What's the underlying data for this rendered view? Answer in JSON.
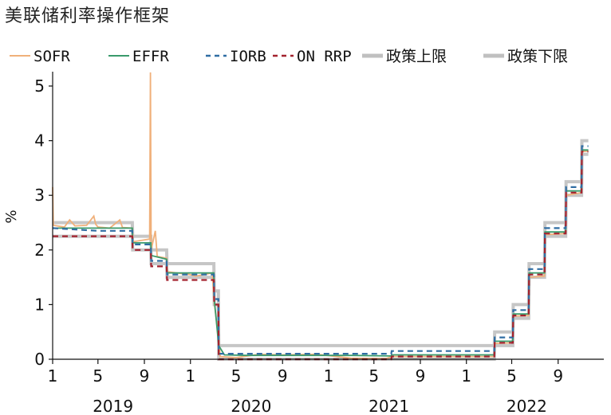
{
  "chart_data": {
    "type": "line",
    "title": "美联储利率操作框架",
    "xlabel": "",
    "ylabel": "%",
    "ylim": [
      0,
      5.25
    ],
    "y_ticks": [
      "0",
      "1",
      "2",
      "3",
      "4",
      "5"
    ],
    "x_month_ticks": [
      {
        "label": "1",
        "date": "2019-01-01"
      },
      {
        "label": "5",
        "date": "2019-05-01"
      },
      {
        "label": "9",
        "date": "2019-09-01"
      },
      {
        "label": "1",
        "date": "2020-01-01"
      },
      {
        "label": "5",
        "date": "2020-05-01"
      },
      {
        "label": "9",
        "date": "2020-09-01"
      },
      {
        "label": "1",
        "date": "2021-01-01"
      },
      {
        "label": "5",
        "date": "2021-05-01"
      },
      {
        "label": "9",
        "date": "2021-09-01"
      },
      {
        "label": "1",
        "date": "2022-01-01"
      },
      {
        "label": "5",
        "date": "2022-05-01"
      },
      {
        "label": "9",
        "date": "2022-09-01"
      }
    ],
    "x_year_labels": [
      {
        "label": "2019",
        "date": "2019-07-01"
      },
      {
        "label": "2020",
        "date": "2020-07-01"
      },
      {
        "label": "2021",
        "date": "2021-07-01"
      },
      {
        "label": "2022",
        "date": "2022-07-01"
      }
    ],
    "x_range": [
      "2019-01-01",
      "2022-12-31"
    ],
    "grid": false,
    "legend_position": "top",
    "series": [
      {
        "name": "SOFR",
        "color": "#f0b07a",
        "style": "solid",
        "points": [
          [
            "2019-01-01",
            3.15
          ],
          [
            "2019-01-03",
            2.45
          ],
          [
            "2019-02-01",
            2.42
          ],
          [
            "2019-02-15",
            2.55
          ],
          [
            "2019-03-01",
            2.44
          ],
          [
            "2019-04-01",
            2.45
          ],
          [
            "2019-04-20",
            2.62
          ],
          [
            "2019-04-25",
            2.47
          ],
          [
            "2019-05-01",
            2.42
          ],
          [
            "2019-06-01",
            2.4
          ],
          [
            "2019-06-28",
            2.55
          ],
          [
            "2019-07-05",
            2.41
          ],
          [
            "2019-07-31",
            2.4
          ],
          [
            "2019-08-02",
            2.15
          ],
          [
            "2019-09-15",
            2.2
          ],
          [
            "2019-09-17",
            5.25
          ],
          [
            "2019-09-19",
            2.0
          ],
          [
            "2019-09-30",
            2.35
          ],
          [
            "2019-10-05",
            1.88
          ],
          [
            "2019-10-30",
            1.85
          ],
          [
            "2019-11-01",
            1.6
          ],
          [
            "2019-12-31",
            1.55
          ],
          [
            "2020-01-15",
            1.52
          ],
          [
            "2020-02-28",
            1.58
          ],
          [
            "2020-03-03",
            1.1
          ],
          [
            "2020-03-15",
            0.4
          ],
          [
            "2020-03-20",
            0.05
          ],
          [
            "2020-05-01",
            0.03
          ],
          [
            "2020-07-01",
            0.09
          ],
          [
            "2020-09-01",
            0.08
          ],
          [
            "2020-12-01",
            0.09
          ],
          [
            "2021-03-01",
            0.02
          ],
          [
            "2021-06-01",
            0.01
          ],
          [
            "2021-06-17",
            0.05
          ],
          [
            "2021-12-31",
            0.05
          ],
          [
            "2022-03-16",
            0.05
          ],
          [
            "2022-03-17",
            0.29
          ],
          [
            "2022-05-04",
            0.3
          ],
          [
            "2022-05-05",
            0.79
          ],
          [
            "2022-06-15",
            0.8
          ],
          [
            "2022-06-16",
            1.5
          ],
          [
            "2022-07-27",
            1.52
          ],
          [
            "2022-07-28",
            2.28
          ],
          [
            "2022-09-21",
            2.3
          ],
          [
            "2022-09-22",
            3.0
          ],
          [
            "2022-11-02",
            3.05
          ],
          [
            "2022-11-03",
            3.8
          ],
          [
            "2022-11-20",
            3.81
          ]
        ]
      },
      {
        "name": "EFFR",
        "color": "#3a9a6b",
        "style": "solid",
        "points": [
          [
            "2019-01-01",
            2.4
          ],
          [
            "2019-07-31",
            2.4
          ],
          [
            "2019-08-01",
            2.13
          ],
          [
            "2019-09-18",
            2.13
          ],
          [
            "2019-09-19",
            1.9
          ],
          [
            "2019-10-30",
            1.83
          ],
          [
            "2019-10-31",
            1.58
          ],
          [
            "2020-03-03",
            1.58
          ],
          [
            "2020-03-04",
            1.1
          ],
          [
            "2020-03-16",
            0.25
          ],
          [
            "2020-03-31",
            0.08
          ],
          [
            "2020-06-01",
            0.07
          ],
          [
            "2021-03-01",
            0.07
          ],
          [
            "2021-06-16",
            0.06
          ],
          [
            "2021-06-17",
            0.08
          ],
          [
            "2022-03-16",
            0.08
          ],
          [
            "2022-03-17",
            0.33
          ],
          [
            "2022-05-04",
            0.33
          ],
          [
            "2022-05-05",
            0.83
          ],
          [
            "2022-06-15",
            0.83
          ],
          [
            "2022-06-16",
            1.58
          ],
          [
            "2022-07-27",
            1.58
          ],
          [
            "2022-07-28",
            2.33
          ],
          [
            "2022-09-21",
            2.33
          ],
          [
            "2022-09-22",
            3.08
          ],
          [
            "2022-11-02",
            3.08
          ],
          [
            "2022-11-03",
            3.83
          ],
          [
            "2022-11-20",
            3.83
          ]
        ]
      },
      {
        "name": "IORB",
        "color": "#2f6da3",
        "style": "dashed",
        "points": [
          [
            "2019-01-01",
            2.4
          ],
          [
            "2019-05-01",
            2.35
          ],
          [
            "2019-07-31",
            2.35
          ],
          [
            "2019-08-01",
            2.1
          ],
          [
            "2019-09-18",
            2.1
          ],
          [
            "2019-09-19",
            1.8
          ],
          [
            "2019-10-30",
            1.8
          ],
          [
            "2019-10-31",
            1.55
          ],
          [
            "2020-03-03",
            1.55
          ],
          [
            "2020-03-04",
            1.1
          ],
          [
            "2020-03-15",
            1.1
          ],
          [
            "2020-03-16",
            0.1
          ],
          [
            "2021-06-16",
            0.1
          ],
          [
            "2021-06-17",
            0.15
          ],
          [
            "2022-03-16",
            0.15
          ],
          [
            "2022-03-17",
            0.4
          ],
          [
            "2022-05-04",
            0.4
          ],
          [
            "2022-05-05",
            0.9
          ],
          [
            "2022-06-15",
            0.9
          ],
          [
            "2022-06-16",
            1.65
          ],
          [
            "2022-07-27",
            1.65
          ],
          [
            "2022-07-28",
            2.4
          ],
          [
            "2022-09-21",
            2.4
          ],
          [
            "2022-09-22",
            3.15
          ],
          [
            "2022-11-02",
            3.15
          ],
          [
            "2022-11-03",
            3.9
          ],
          [
            "2022-11-20",
            3.9
          ]
        ]
      },
      {
        "name": "ON RRP",
        "color": "#a3222e",
        "style": "dashed",
        "points": [
          [
            "2019-01-01",
            2.25
          ],
          [
            "2019-07-31",
            2.25
          ],
          [
            "2019-08-01",
            2.0
          ],
          [
            "2019-09-18",
            2.0
          ],
          [
            "2019-09-19",
            1.7
          ],
          [
            "2019-10-30",
            1.7
          ],
          [
            "2019-10-31",
            1.45
          ],
          [
            "2020-03-03",
            1.45
          ],
          [
            "2020-03-04",
            1.0
          ],
          [
            "2020-03-15",
            1.0
          ],
          [
            "2020-03-16",
            0.0
          ],
          [
            "2021-06-16",
            0.0
          ],
          [
            "2021-06-17",
            0.05
          ],
          [
            "2022-03-16",
            0.05
          ],
          [
            "2022-03-17",
            0.3
          ],
          [
            "2022-05-04",
            0.3
          ],
          [
            "2022-05-05",
            0.8
          ],
          [
            "2022-06-15",
            0.8
          ],
          [
            "2022-06-16",
            1.55
          ],
          [
            "2022-07-27",
            1.55
          ],
          [
            "2022-07-28",
            2.3
          ],
          [
            "2022-09-21",
            2.3
          ],
          [
            "2022-09-22",
            3.05
          ],
          [
            "2022-11-02",
            3.05
          ],
          [
            "2022-11-03",
            3.8
          ],
          [
            "2022-11-20",
            3.8
          ]
        ]
      },
      {
        "name": "政策上限",
        "color": "#c0c0c0",
        "style": "thick",
        "points": [
          [
            "2019-01-01",
            2.5
          ],
          [
            "2019-07-31",
            2.5
          ],
          [
            "2019-08-01",
            2.25
          ],
          [
            "2019-09-18",
            2.25
          ],
          [
            "2019-09-19",
            2.0
          ],
          [
            "2019-10-30",
            2.0
          ],
          [
            "2019-10-31",
            1.75
          ],
          [
            "2020-03-03",
            1.75
          ],
          [
            "2020-03-04",
            1.25
          ],
          [
            "2020-03-15",
            1.25
          ],
          [
            "2020-03-16",
            0.25
          ],
          [
            "2022-03-16",
            0.25
          ],
          [
            "2022-03-17",
            0.5
          ],
          [
            "2022-05-04",
            0.5
          ],
          [
            "2022-05-05",
            1.0
          ],
          [
            "2022-06-15",
            1.0
          ],
          [
            "2022-06-16",
            1.75
          ],
          [
            "2022-07-27",
            1.75
          ],
          [
            "2022-07-28",
            2.5
          ],
          [
            "2022-09-21",
            2.5
          ],
          [
            "2022-09-22",
            3.25
          ],
          [
            "2022-11-02",
            3.25
          ],
          [
            "2022-11-03",
            4.0
          ],
          [
            "2022-11-20",
            4.0
          ]
        ]
      },
      {
        "name": "政策下限",
        "color": "#c0c0c0",
        "style": "thick",
        "points": [
          [
            "2019-01-01",
            2.25
          ],
          [
            "2019-07-31",
            2.25
          ],
          [
            "2019-08-01",
            2.0
          ],
          [
            "2019-09-18",
            2.0
          ],
          [
            "2019-09-19",
            1.75
          ],
          [
            "2019-10-30",
            1.75
          ],
          [
            "2019-10-31",
            1.5
          ],
          [
            "2020-03-03",
            1.5
          ],
          [
            "2020-03-04",
            1.0
          ],
          [
            "2020-03-15",
            1.0
          ],
          [
            "2020-03-16",
            0.0
          ],
          [
            "2022-03-16",
            0.0
          ],
          [
            "2022-03-17",
            0.25
          ],
          [
            "2022-05-04",
            0.25
          ],
          [
            "2022-05-05",
            0.75
          ],
          [
            "2022-06-15",
            0.75
          ],
          [
            "2022-06-16",
            1.5
          ],
          [
            "2022-07-27",
            1.5
          ],
          [
            "2022-07-28",
            2.25
          ],
          [
            "2022-09-21",
            2.25
          ],
          [
            "2022-09-22",
            3.0
          ],
          [
            "2022-11-02",
            3.0
          ],
          [
            "2022-11-03",
            3.75
          ],
          [
            "2022-11-20",
            3.75
          ]
        ]
      }
    ]
  }
}
